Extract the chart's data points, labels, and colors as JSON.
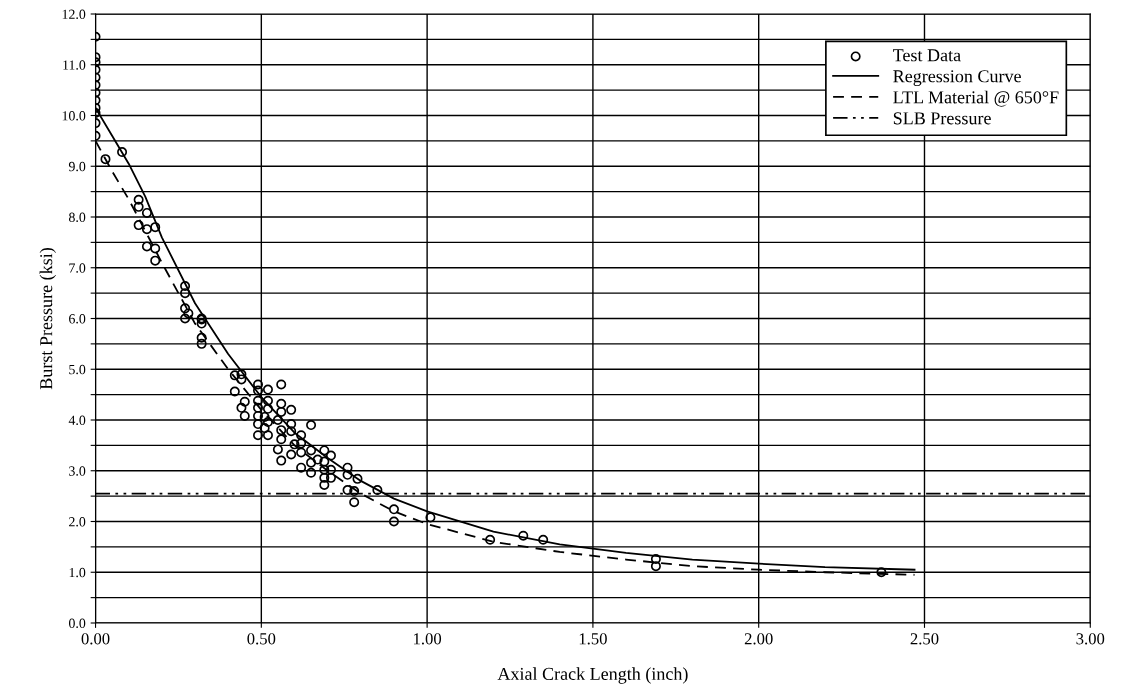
{
  "chart_data": {
    "type": "scatter",
    "xlabel": "Axial Crack Length (inch)",
    "ylabel": "Burst Pressure (ksi)",
    "xlim": [
      0,
      3
    ],
    "xticks": [
      {
        "value": 0,
        "label": "0.00"
      },
      {
        "value": 0.5,
        "label": "0.50"
      },
      {
        "value": 1,
        "label": "1.00"
      },
      {
        "value": 1.5,
        "label": "1.50"
      },
      {
        "value": 2,
        "label": "2.00"
      },
      {
        "value": 2.5,
        "label": "2.50"
      },
      {
        "value": 3,
        "label": "3.00"
      }
    ],
    "ylim": [
      0,
      12
    ],
    "yticks": [
      {
        "value": 0,
        "label": "0.0"
      },
      {
        "value": 0.5,
        "label": null
      },
      {
        "value": 1,
        "label": "1.0"
      },
      {
        "value": 1.5,
        "label": null
      },
      {
        "value": 2,
        "label": "2.0"
      },
      {
        "value": 2.5,
        "label": null
      },
      {
        "value": 3,
        "label": "3.0"
      },
      {
        "value": 3.5,
        "label": null
      },
      {
        "value": 4,
        "label": "4.0"
      },
      {
        "value": 4.5,
        "label": null
      },
      {
        "value": 5,
        "label": "5.0"
      },
      {
        "value": 5.5,
        "label": null
      },
      {
        "value": 6,
        "label": "6.0"
      },
      {
        "value": 6.5,
        "label": null
      },
      {
        "value": 7,
        "label": "7.0"
      },
      {
        "value": 7.5,
        "label": null
      },
      {
        "value": 8,
        "label": "8.0"
      },
      {
        "value": 8.5,
        "label": null
      },
      {
        "value": 9,
        "label": "9.0"
      },
      {
        "value": 9.5,
        "label": null
      },
      {
        "value": 10,
        "label": "10.0"
      },
      {
        "value": 10.5,
        "label": null
      },
      {
        "value": 11,
        "label": "11.0"
      },
      {
        "value": 11.5,
        "label": null
      },
      {
        "value": 12,
        "label": "12.0"
      }
    ],
    "grid": true,
    "legend": "top right",
    "series": [
      {
        "name": "Test Data",
        "marker": "circle",
        "color": "#000000",
        "x": [
          0,
          0,
          0,
          0,
          0,
          0,
          0,
          0,
          0,
          0,
          0,
          0,
          0.03,
          0.08,
          0.13,
          0.13,
          0.155,
          0.13,
          0.155,
          0.18,
          0.155,
          0.18,
          0.18,
          0.27,
          0.27,
          0.27,
          0.27,
          0.32,
          0.28,
          0.32,
          0.32,
          0.32,
          0.32,
          0.42,
          0.44,
          0.44,
          0.42,
          0.45,
          0.44,
          0.45,
          0.49,
          0.49,
          0.49,
          0.49,
          0.49,
          0.49,
          0.49,
          0.52,
          0.52,
          0.52,
          0.51,
          0.52,
          0.51,
          0.52,
          0.56,
          0.56,
          0.56,
          0.55,
          0.56,
          0.56,
          0.55,
          0.56,
          0.59,
          0.59,
          0.59,
          0.6,
          0.59,
          0.62,
          0.62,
          0.62,
          0.62,
          0.65,
          0.65,
          0.65,
          0.65,
          0.67,
          0.69,
          0.69,
          0.69,
          0.69,
          0.69,
          0.71,
          0.71,
          0.71,
          0.76,
          0.76,
          0.79,
          0.76,
          0.78,
          0.78,
          0.85,
          0.9,
          0.9,
          1.01,
          1.19,
          1.29,
          1.35,
          1.69,
          1.69,
          2.37
        ],
        "values": [
          11.55,
          11.15,
          11.05,
          10.9,
          10.75,
          10.6,
          10.45,
          10.3,
          10.15,
          10.05,
          9.85,
          9.6,
          9.14,
          9.28,
          8.34,
          8.2,
          8.08,
          7.84,
          7.76,
          7.8,
          7.42,
          7.38,
          7.14,
          6.64,
          6.5,
          6.2,
          6.0,
          5.98,
          6.1,
          6.0,
          5.9,
          5.62,
          5.5,
          4.88,
          4.9,
          4.8,
          4.56,
          4.36,
          4.24,
          4.08,
          4.7,
          4.58,
          4.38,
          4.24,
          4.08,
          3.92,
          3.7,
          4.6,
          4.38,
          4.22,
          4.06,
          3.96,
          3.84,
          3.7,
          4.7,
          4.32,
          4.16,
          4.0,
          3.8,
          3.62,
          3.42,
          3.2,
          4.2,
          3.92,
          3.78,
          3.52,
          3.32,
          3.7,
          3.54,
          3.36,
          3.06,
          3.9,
          3.4,
          3.16,
          2.96,
          3.22,
          3.4,
          3.18,
          3.02,
          2.86,
          2.72,
          3.3,
          3.02,
          2.86,
          3.06,
          2.92,
          2.84,
          2.62,
          2.6,
          2.38,
          2.62,
          2.24,
          2.0,
          2.08,
          1.64,
          1.72,
          1.64,
          1.26,
          1.12,
          1.0
        ]
      },
      {
        "name": "Regression Curve",
        "type": "line",
        "line_style": "solid",
        "color": "#000000",
        "x": [
          0,
          0.05,
          0.1,
          0.15,
          0.2,
          0.3,
          0.4,
          0.5,
          0.6,
          0.7,
          0.8,
          0.9,
          1.0,
          1.2,
          1.4,
          1.6,
          1.8,
          2.0,
          2.2,
          2.47
        ],
        "values": [
          10.15,
          9.6,
          9.05,
          8.4,
          7.6,
          6.3,
          5.3,
          4.45,
          3.75,
          3.25,
          2.8,
          2.45,
          2.2,
          1.8,
          1.55,
          1.38,
          1.25,
          1.17,
          1.1,
          1.05
        ]
      },
      {
        "name": "LTL Material @ 650°F",
        "type": "line",
        "line_style": "dashed",
        "color": "#000000",
        "x": [
          0,
          0.05,
          0.1,
          0.2,
          0.3,
          0.4,
          0.5,
          0.6,
          0.7,
          0.8,
          0.9,
          1.0,
          1.2,
          1.4,
          1.6,
          1.8,
          2.0,
          2.2,
          2.47
        ],
        "values": [
          9.5,
          8.9,
          8.35,
          7.1,
          5.9,
          5.0,
          4.2,
          3.5,
          3.0,
          2.55,
          2.2,
          1.95,
          1.6,
          1.4,
          1.25,
          1.12,
          1.05,
          1.0,
          0.95
        ]
      }
    ],
    "ref_lines": [
      {
        "axis": "y",
        "value": 2.55,
        "label": "SLB Pressure",
        "color": "#000000",
        "line_style": "dashdot"
      }
    ]
  }
}
